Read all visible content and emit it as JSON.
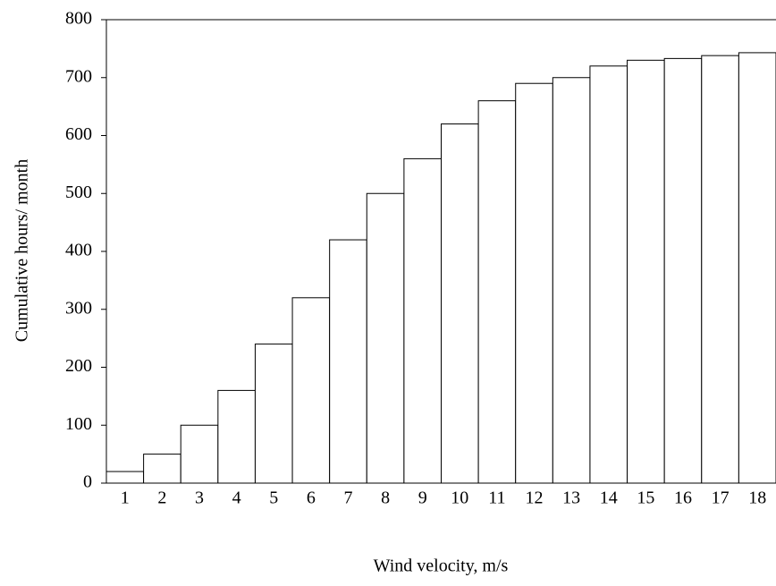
{
  "chart_data": {
    "type": "bar",
    "x_label": "Wind velocity, m/s",
    "y_label": "Cumulative hours/ month",
    "categories": [
      "1",
      "2",
      "3",
      "4",
      "5",
      "6",
      "7",
      "8",
      "9",
      "10",
      "11",
      "12",
      "13",
      "14",
      "15",
      "16",
      "17",
      "18"
    ],
    "values": [
      20,
      50,
      100,
      160,
      240,
      320,
      420,
      500,
      560,
      620,
      660,
      690,
      700,
      720,
      730,
      733,
      738,
      743
    ],
    "color": "#ffffff",
    "ylim": [
      0,
      800
    ],
    "yticks": [
      0,
      100,
      200,
      300,
      400,
      500,
      600,
      700,
      800
    ]
  }
}
